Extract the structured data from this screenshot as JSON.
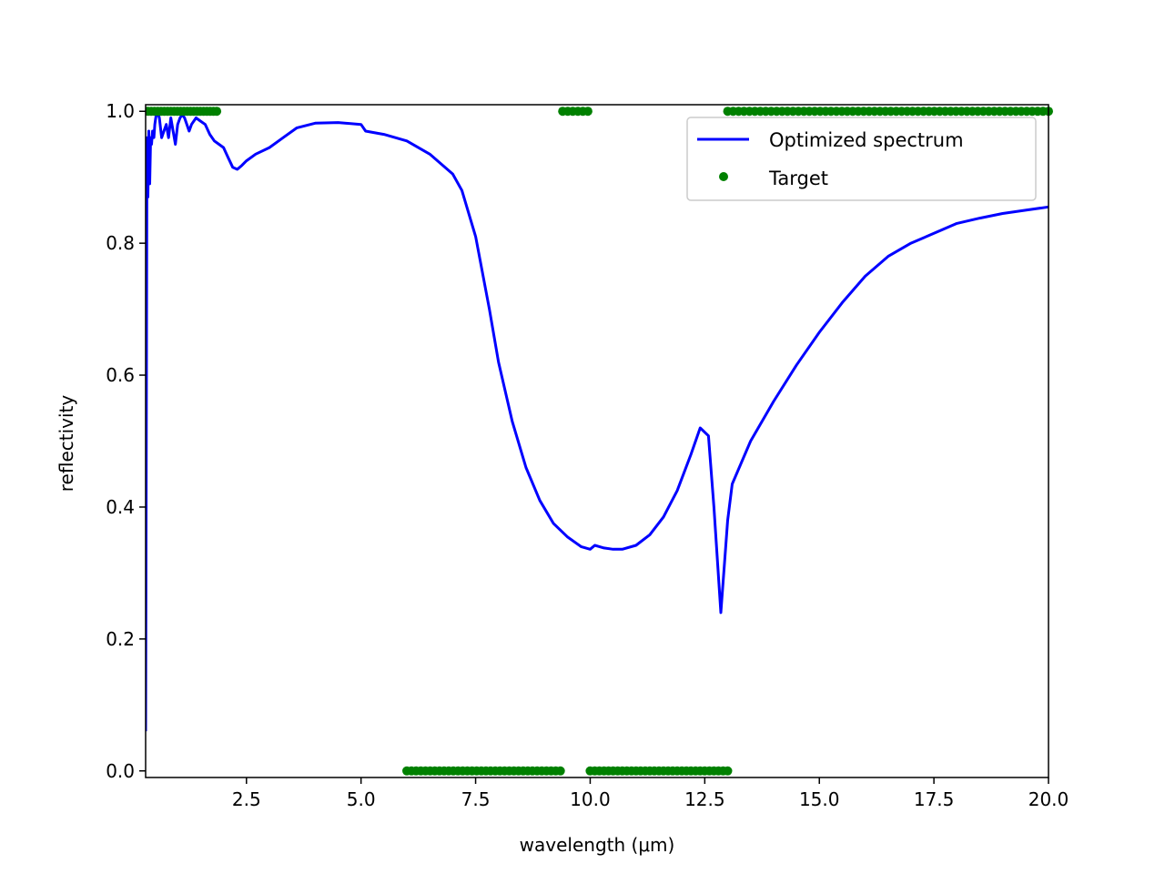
{
  "chart_data": {
    "type": "line",
    "title": "",
    "xlabel": "wavelength (μm)",
    "ylabel": "reflectivity",
    "xlim": [
      0.3,
      20.0
    ],
    "ylim": [
      -0.01,
      1.01
    ],
    "x_ticks": [
      2.5,
      5.0,
      7.5,
      10.0,
      12.5,
      15.0,
      17.5,
      20.0
    ],
    "x_tick_labels": [
      "2.5",
      "5.0",
      "7.5",
      "10.0",
      "12.5",
      "15.0",
      "17.5",
      "20.0"
    ],
    "y_ticks": [
      0.0,
      0.2,
      0.4,
      0.6,
      0.8,
      1.0
    ],
    "y_tick_labels": [
      "0.0",
      "0.2",
      "0.4",
      "0.6",
      "0.8",
      "1.0"
    ],
    "grid": false,
    "legend_position": "top-right",
    "series": [
      {
        "name": "Optimized spectrum",
        "style": "line",
        "color": "#0000ff",
        "x": [
          0.3,
          0.33,
          0.35,
          0.37,
          0.39,
          0.41,
          0.43,
          0.45,
          0.48,
          0.5,
          0.52,
          0.55,
          0.6,
          0.65,
          0.7,
          0.75,
          0.8,
          0.85,
          0.9,
          0.95,
          1.0,
          1.05,
          1.1,
          1.15,
          1.2,
          1.25,
          1.3,
          1.4,
          1.5,
          1.6,
          1.7,
          1.8,
          1.9,
          2.0,
          2.1,
          2.2,
          2.3,
          2.4,
          2.5,
          2.7,
          3.0,
          3.3,
          3.6,
          4.0,
          4.5,
          5.0,
          5.1,
          5.5,
          6.0,
          6.5,
          7.0,
          7.2,
          7.5,
          7.8,
          8.0,
          8.3,
          8.6,
          8.9,
          9.2,
          9.5,
          9.8,
          10.0,
          10.1,
          10.2,
          10.3,
          10.5,
          10.7,
          11.0,
          11.3,
          11.6,
          11.9,
          12.2,
          12.4,
          12.58,
          12.7,
          12.85,
          13.0,
          13.1,
          13.5,
          14.0,
          14.5,
          15.0,
          15.5,
          16.0,
          16.5,
          17.0,
          17.5,
          18.0,
          18.5,
          19.0,
          19.5,
          20.0
        ],
        "y": [
          0.06,
          0.96,
          0.87,
          0.97,
          0.89,
          0.96,
          0.95,
          0.97,
          0.96,
          0.98,
          0.99,
          1.0,
          0.99,
          0.96,
          0.97,
          0.98,
          0.96,
          0.99,
          0.97,
          0.95,
          0.98,
          0.99,
          0.995,
          0.99,
          0.98,
          0.97,
          0.98,
          0.99,
          0.985,
          0.98,
          0.965,
          0.955,
          0.95,
          0.945,
          0.93,
          0.915,
          0.912,
          0.918,
          0.925,
          0.935,
          0.945,
          0.96,
          0.975,
          0.982,
          0.983,
          0.98,
          0.97,
          0.965,
          0.955,
          0.935,
          0.905,
          0.88,
          0.81,
          0.7,
          0.62,
          0.53,
          0.46,
          0.41,
          0.375,
          0.355,
          0.34,
          0.336,
          0.342,
          0.34,
          0.338,
          0.336,
          0.336,
          0.342,
          0.358,
          0.385,
          0.425,
          0.48,
          0.52,
          0.508,
          0.4,
          0.24,
          0.38,
          0.435,
          0.5,
          0.56,
          0.615,
          0.665,
          0.71,
          0.75,
          0.78,
          0.8,
          0.815,
          0.83,
          0.838,
          0.845,
          0.85,
          0.855
        ]
      },
      {
        "name": "Target",
        "style": "points",
        "color": "#008000",
        "segments": [
          {
            "x_start": 0.35,
            "x_end": 1.85,
            "y": 1.0,
            "count": 22
          },
          {
            "x_start": 9.4,
            "x_end": 9.95,
            "y": 1.0,
            "count": 6
          },
          {
            "x_start": 13.0,
            "x_end": 20.0,
            "y": 1.0,
            "count": 60
          },
          {
            "x_start": 6.0,
            "x_end": 9.35,
            "y": 0.0,
            "count": 34
          },
          {
            "x_start": 10.0,
            "x_end": 13.0,
            "y": 0.0,
            "count": 31
          }
        ]
      }
    ]
  }
}
